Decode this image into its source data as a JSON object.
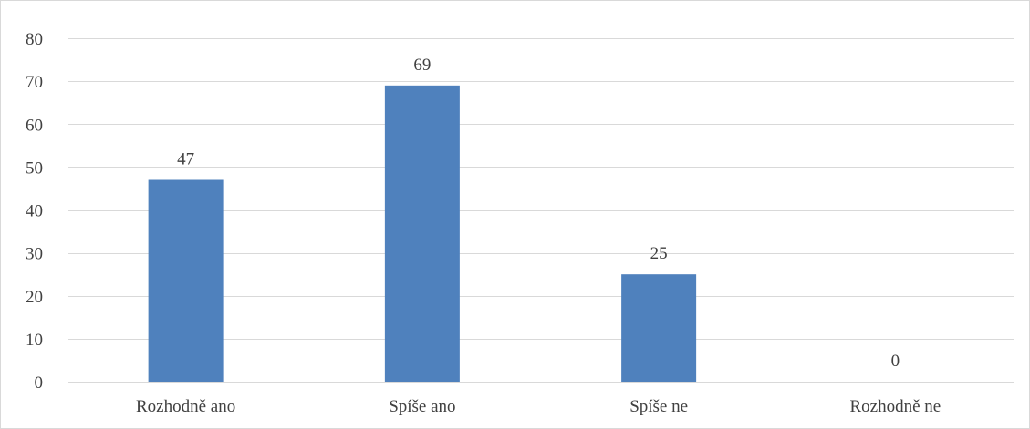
{
  "chart_data": {
    "type": "bar",
    "title": "",
    "xlabel": "",
    "ylabel": "",
    "categories": [
      "Rozhodně ano",
      "Spíše ano",
      "Spíše ne",
      "Rozhodně ne"
    ],
    "values": [
      47,
      69,
      25,
      0
    ],
    "ylim": [
      0,
      80
    ],
    "yticks": [
      0,
      10,
      20,
      30,
      40,
      50,
      60,
      70,
      80
    ],
    "grid": true,
    "legend": "none",
    "data_labels": true,
    "bar_color": "#4f81bd",
    "grid_color": "#d9d9d9"
  }
}
